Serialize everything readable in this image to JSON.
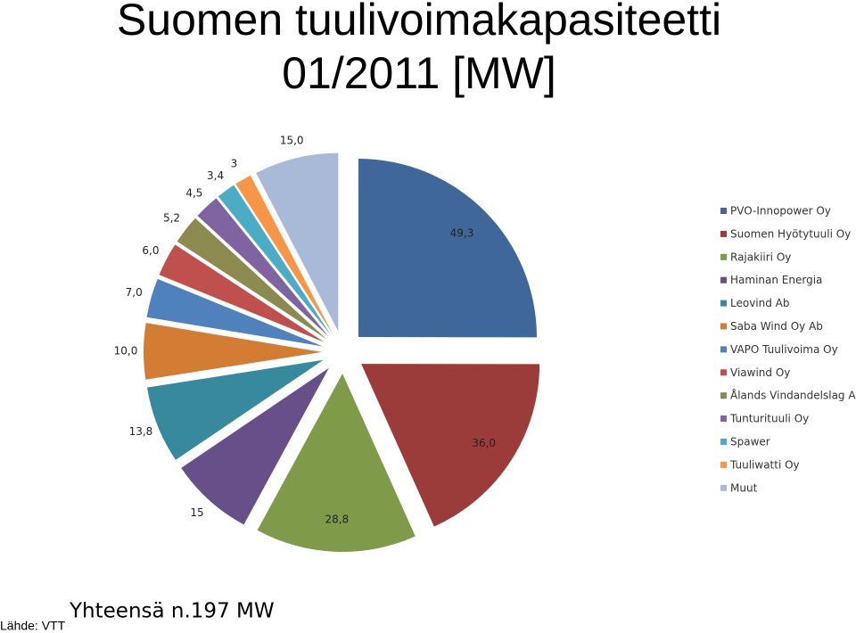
{
  "chart_data": {
    "type": "pie",
    "title": "Suomen tuulivoimakapasiteetti 01/2011 [MW]",
    "categories": [
      "PVO-Innopower Oy",
      "Suomen Hyötytuuli Oy",
      "Rajakiiri Oy",
      "Haminan Energia",
      "Leovind Ab",
      "Saba Wind Oy Ab",
      "VAPO Tuulivoima Oy",
      "Viawind Oy",
      "Ålands Vindandelslag Ab",
      "Tunturituuli Oy",
      "Spawer",
      "Tuuliwatti Oy",
      "Muut"
    ],
    "values": [
      49.3,
      36.0,
      28.8,
      15,
      13.8,
      10.0,
      7.0,
      6.0,
      5.2,
      4.5,
      3.4,
      3,
      15.0
    ],
    "value_labels": [
      "49,3",
      "36,0",
      "28,8",
      "15",
      "13,8",
      "10,0",
      "7,0",
      "6,0",
      "5,2",
      "4,5",
      "3,4",
      "3",
      "15,0"
    ],
    "colors": [
      "#3f6799",
      "#9b3c3a",
      "#7f9a48",
      "#67508a",
      "#378a9e",
      "#d37c34",
      "#4f81bd",
      "#c0504d",
      "#8c8a4e",
      "#8064a2",
      "#4bacc6",
      "#f79646",
      "#a9b9d8"
    ],
    "legend": "right",
    "annotations": [
      "Yhteensä n.197 MW",
      "Lähde: VTT"
    ]
  }
}
